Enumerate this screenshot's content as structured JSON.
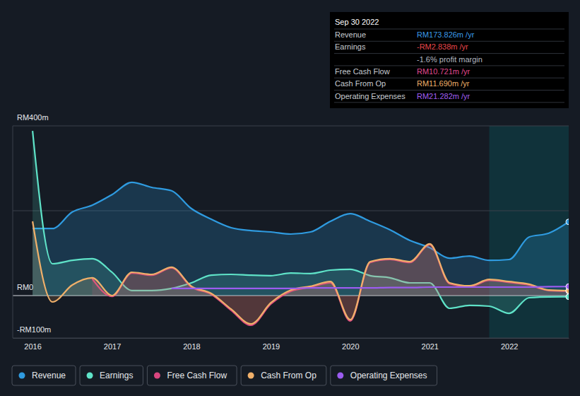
{
  "chart_data": {
    "type": "area",
    "x": [
      2016,
      2016.25,
      2016.5,
      2016.75,
      2017,
      2017.25,
      2017.5,
      2017.75,
      2018,
      2018.25,
      2018.5,
      2018.75,
      2019,
      2019.25,
      2019.5,
      2019.75,
      2020,
      2020.25,
      2020.5,
      2020.75,
      2021,
      2021.25,
      2021.5,
      2021.75,
      2022,
      2022.25,
      2022.5,
      2022.75
    ],
    "xlim": [
      2015.75,
      2022.75
    ],
    "xticks": [
      2016,
      2017,
      2018,
      2019,
      2020,
      2021,
      2022
    ],
    "ylim": [
      -100,
      400
    ],
    "yticks": [
      {
        "value": 400,
        "label": "RM400m"
      },
      {
        "value": 200,
        "label": null
      },
      {
        "value": 0,
        "label": "RM0"
      },
      {
        "value": -100,
        "label": "-RM100m"
      }
    ],
    "grid": true,
    "legend": "bottom",
    "highlight_range": [
      2021.75,
      2022.75
    ],
    "series": [
      {
        "name": "Revenue",
        "color": "#2f9be0",
        "type": "area",
        "values": [
          158,
          158,
          197,
          213,
          238,
          267,
          255,
          247,
          205,
          180,
          160,
          153,
          150,
          145,
          150,
          175,
          193,
          175,
          155,
          130,
          113,
          88,
          93,
          83,
          85,
          138,
          147,
          173.826
        ]
      },
      {
        "name": "Earnings",
        "color": "#5fe3c8",
        "type": "area",
        "values": [
          388,
          75,
          83,
          87,
          55,
          12,
          12,
          17,
          30,
          48,
          50,
          48,
          47,
          53,
          52,
          60,
          62,
          47,
          42,
          30,
          30,
          -30,
          -23,
          -25,
          -42,
          -5,
          -3,
          -2.838
        ]
      },
      {
        "name": "Free Cash Flow",
        "color": "#d9467f",
        "type": "area",
        "values": [
          null,
          null,
          null,
          40,
          -2,
          53,
          48,
          65,
          20,
          3,
          -35,
          -70,
          -20,
          10,
          20,
          30,
          -60,
          78,
          85,
          78,
          120,
          28,
          21,
          36,
          31,
          25,
          12,
          10.721
        ]
      },
      {
        "name": "Cash From Op",
        "color": "#f0b06a",
        "type": "area",
        "values": [
          175,
          -15,
          25,
          42,
          0,
          55,
          50,
          67,
          22,
          5,
          -32,
          -67,
          -17,
          13,
          22,
          33,
          -57,
          80,
          87,
          80,
          122,
          30,
          23,
          38,
          33,
          27,
          13,
          11.69
        ]
      },
      {
        "name": "Operating Expenses",
        "color": "#9b5cf0",
        "type": "line",
        "values": [
          null,
          null,
          null,
          null,
          null,
          null,
          null,
          17,
          17,
          17,
          17,
          17,
          17,
          17,
          18,
          18,
          18,
          18,
          19,
          19,
          20,
          20,
          20,
          20,
          20,
          20,
          21,
          21.282
        ]
      }
    ],
    "tooltip": {
      "title": "Sep 30 2022",
      "rows": [
        {
          "label": "Revenue",
          "value": "RM173.826m /yr",
          "color": "#3b9be8"
        },
        {
          "label": "Earnings",
          "value": "-RM2.838m /yr",
          "color": "#e8474b"
        },
        {
          "value": "-1.6% profit margin",
          "color": "#b4b8c0"
        },
        {
          "label": "Free Cash Flow",
          "value": "RM10.721m /yr",
          "color": "#e0498f"
        },
        {
          "label": "Cash From Op",
          "value": "RM11.690m /yr",
          "color": "#f0b06a"
        },
        {
          "label": "Operating Expenses",
          "value": "RM21.282m /yr",
          "color": "#a25ff2"
        }
      ]
    }
  }
}
